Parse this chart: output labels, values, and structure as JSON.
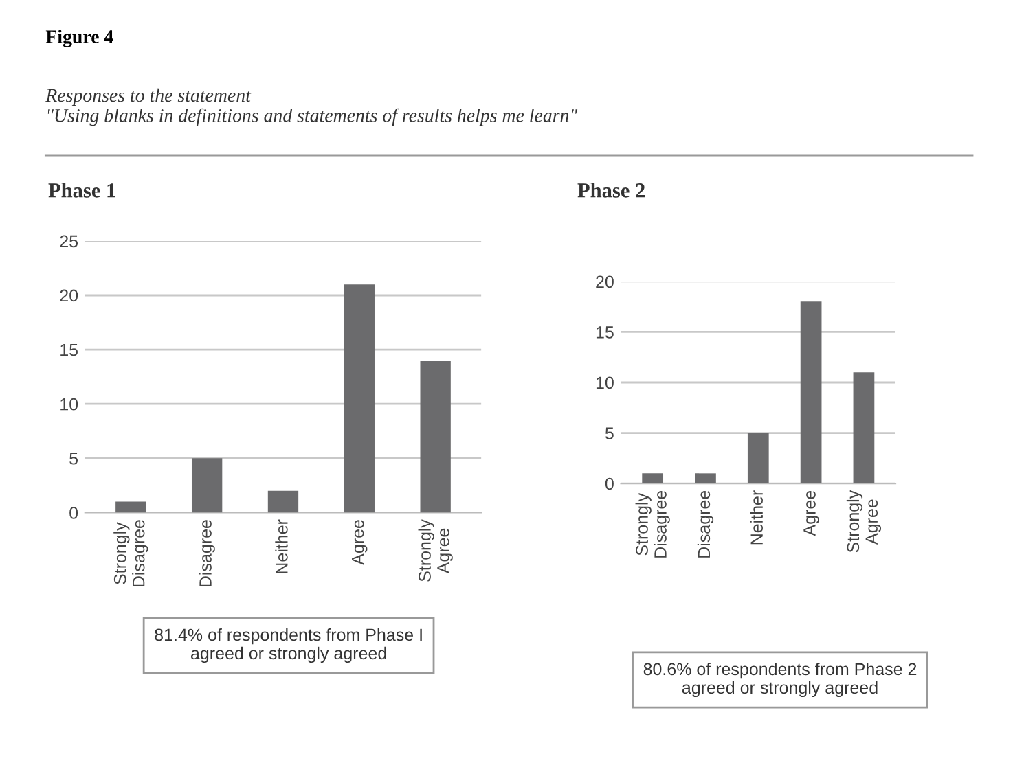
{
  "chart_data": [
    {
      "type": "bar",
      "title": "Phase 1",
      "categories": [
        "Strongly\nDisagree",
        "Disagree",
        "Neither",
        "Agree",
        "Strongly\nAgree"
      ],
      "values": [
        1,
        5,
        2,
        21,
        14
      ],
      "color": "#6b6b6d",
      "ylim": [
        0,
        25
      ],
      "yticks": [
        0,
        5,
        10,
        15,
        20,
        25
      ],
      "grid": "y",
      "legend": false,
      "annotations": [
        "Figure 4",
        "Responses to the statement\n\"Using blanks in definitions and statements of results helps me learn\"",
        "81.4% of respondents from Phase I\nagreed or strongly agreed"
      ]
    },
    {
      "type": "bar",
      "title": "Phase 2",
      "categories": [
        "Strongly\nDisagree",
        "Disagree",
        "Neither",
        "Agree",
        "Strongly\nAgree"
      ],
      "values": [
        1,
        1,
        5,
        18,
        11
      ],
      "color": "#6b6b6d",
      "ylim": [
        0,
        20
      ],
      "yticks": [
        0,
        5,
        10,
        15,
        20
      ],
      "grid": "y",
      "legend": false,
      "annotations": [
        "80.6% of respondents from Phase 2\nagreed or strongly agreed"
      ]
    }
  ]
}
